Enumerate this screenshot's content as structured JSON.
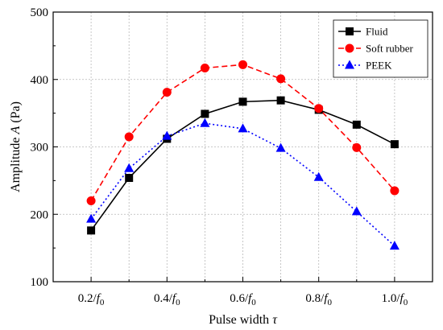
{
  "chart_data": {
    "type": "line",
    "xlabel": {
      "text": "Pulse width ",
      "symbol": "τ"
    },
    "ylabel": {
      "text": "Amplitude ",
      "symbol": "A",
      "unit": " (Pa)"
    },
    "x_categories": [
      {
        "num": "0.2/",
        "sym": "f",
        "sub": "0"
      },
      {
        "num": "0.4/",
        "sym": "f",
        "sub": "0"
      },
      {
        "num": "0.6/",
        "sym": "f",
        "sub": "0"
      },
      {
        "num": "0.8/",
        "sym": "f",
        "sub": "0"
      },
      {
        "num": "1.0/",
        "sym": "f",
        "sub": "0"
      }
    ],
    "x_values": [
      0.2,
      0.3,
      0.4,
      0.5,
      0.6,
      0.7,
      0.8,
      0.9,
      1.0
    ],
    "xlim": [
      0.1,
      1.1
    ],
    "ylim": [
      100,
      500
    ],
    "y_ticks": [
      100,
      200,
      300,
      400,
      500
    ],
    "grid": true,
    "legend_position": "top-right",
    "series": [
      {
        "name": "Fluid",
        "color": "#000000",
        "line_style": "solid",
        "marker": "square",
        "values": [
          176,
          254,
          312,
          349,
          367,
          369,
          355,
          333,
          304
        ]
      },
      {
        "name": "Soft rubber",
        "color": "#ff0000",
        "line_style": "dashed",
        "marker": "circle",
        "values": [
          220,
          315,
          381,
          417,
          422,
          401,
          357,
          299,
          235
        ]
      },
      {
        "name": "PEEK",
        "color": "#0000ff",
        "line_style": "dotted",
        "marker": "triangle",
        "values": [
          193,
          268,
          316,
          335,
          327,
          298,
          255,
          204,
          153
        ]
      }
    ]
  }
}
